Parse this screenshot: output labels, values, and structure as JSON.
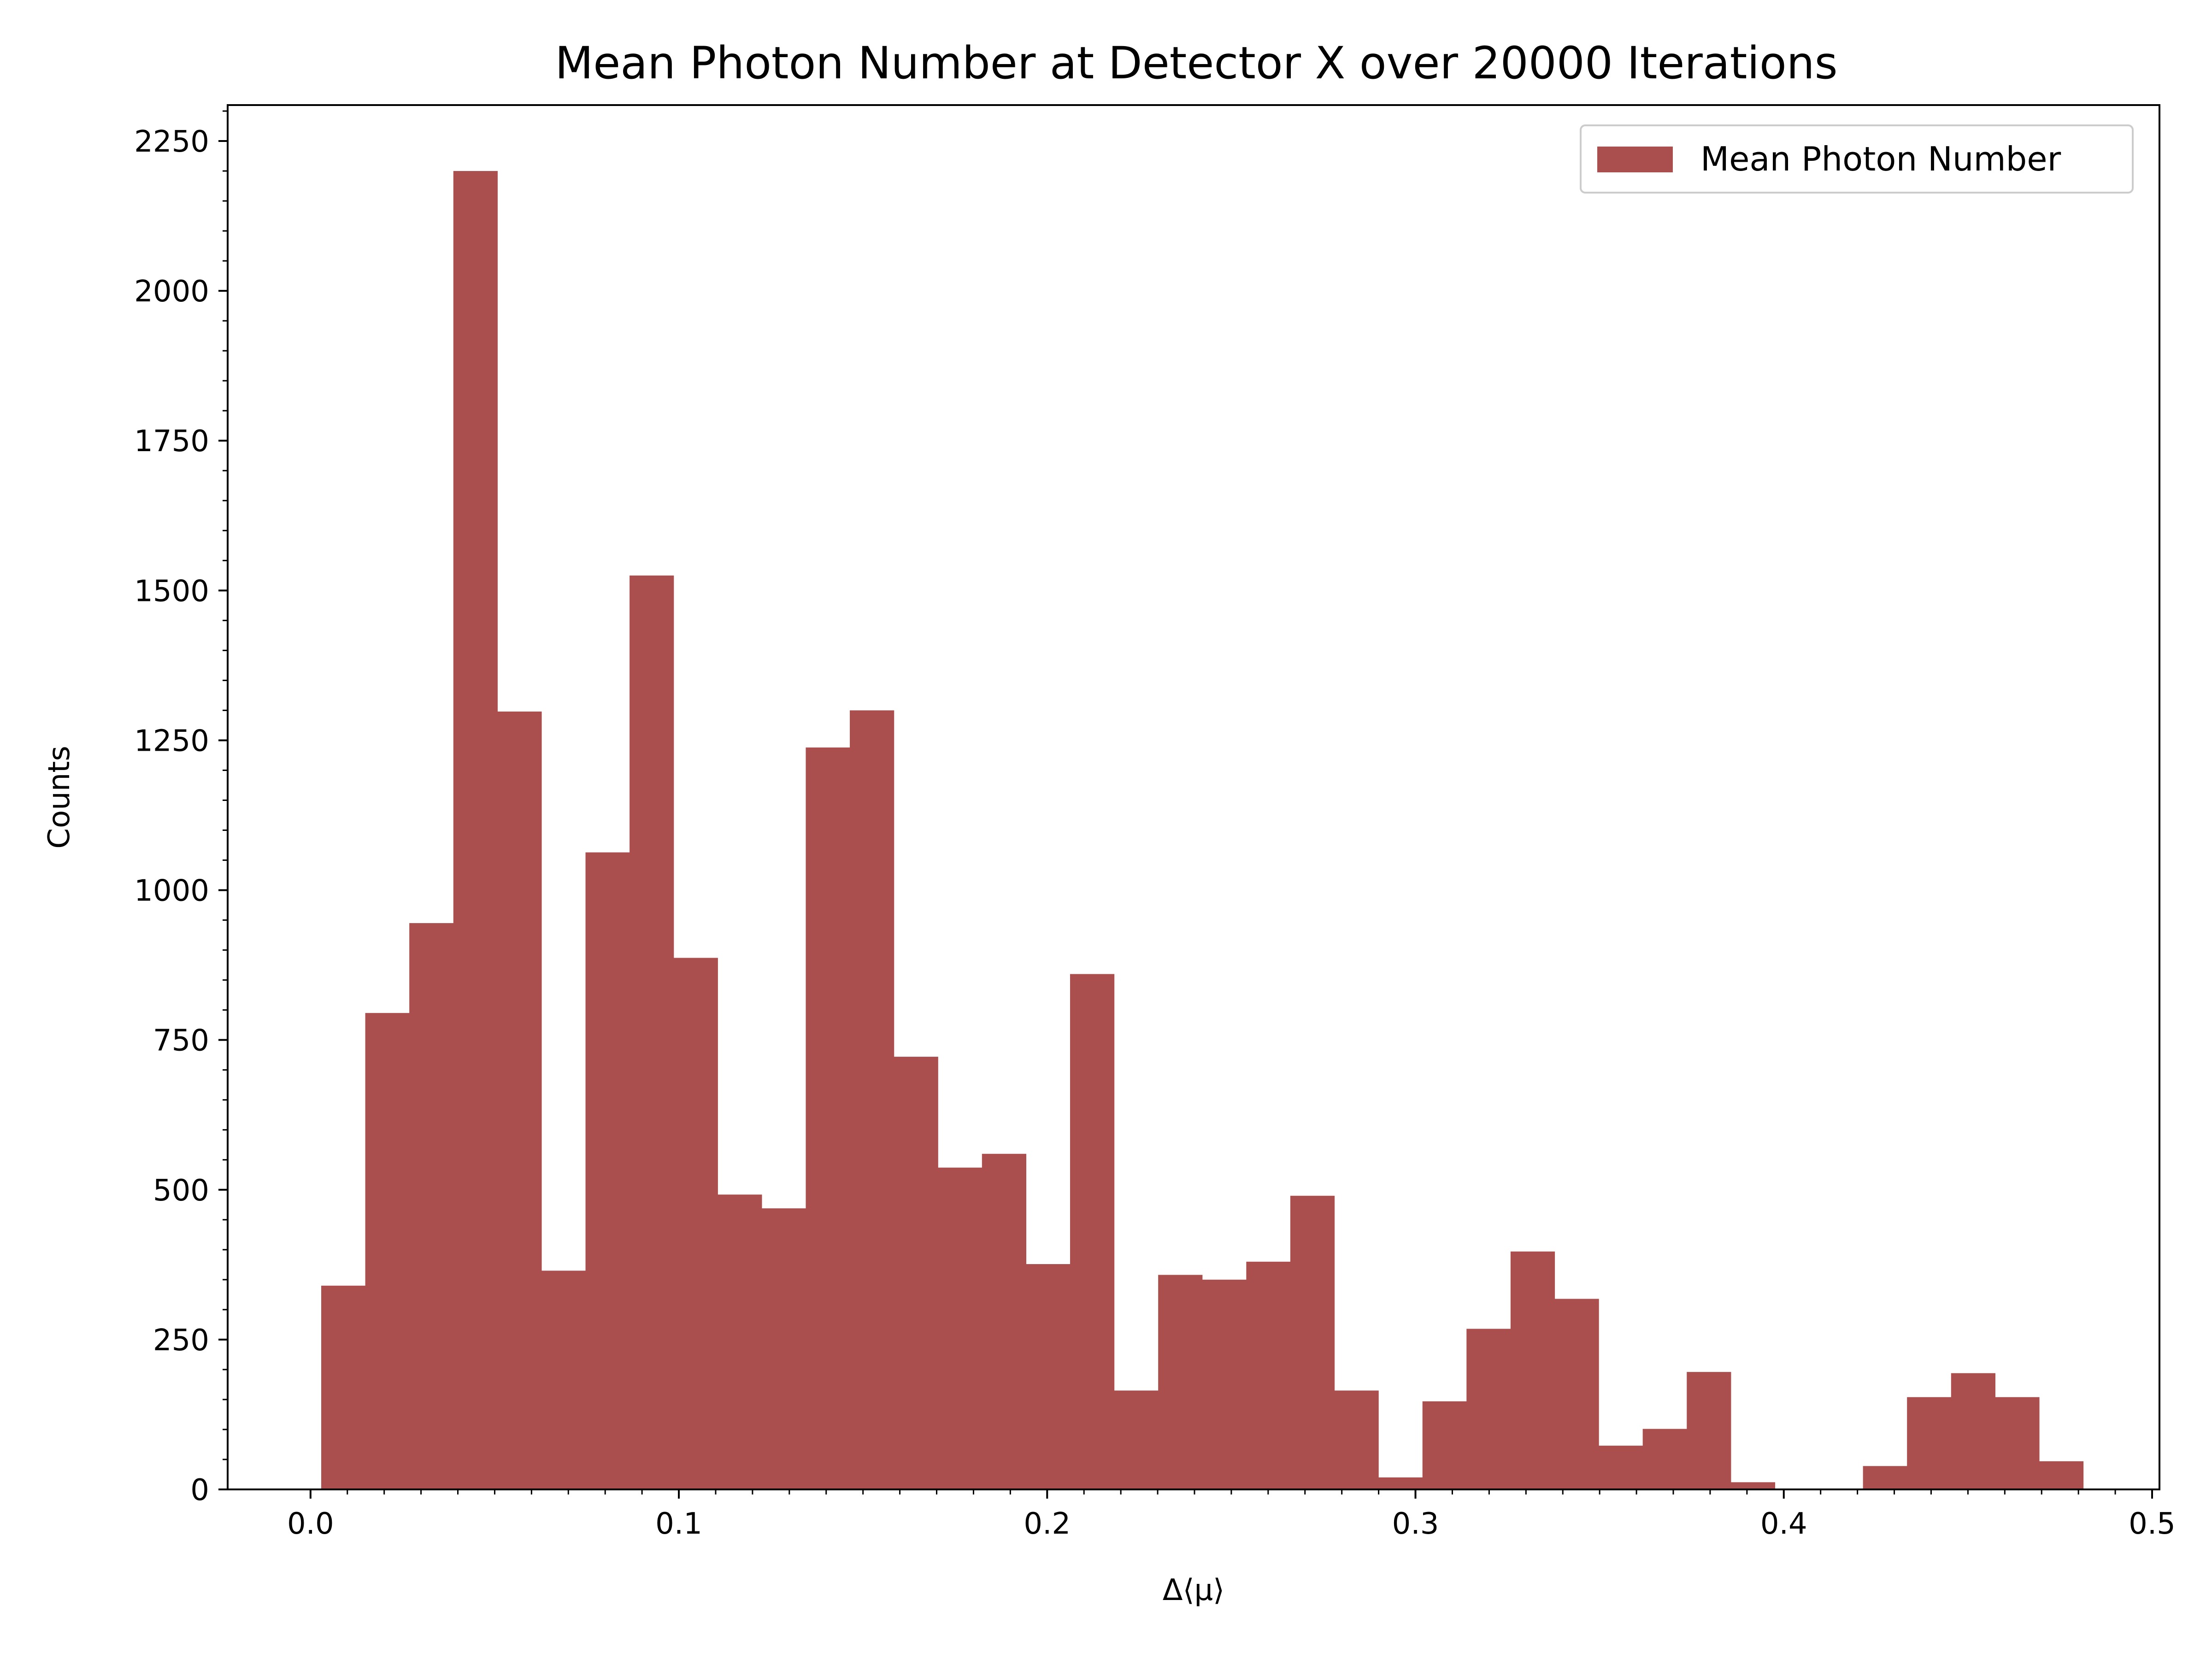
{
  "chart_data": {
    "type": "bar",
    "title": "Mean Photon Number at Detector X over 20000 Iterations",
    "xlabel": "Δ⟨μ⟩",
    "ylabel": "Counts",
    "xlim": [
      -0.0225,
      0.502
    ],
    "ylim": [
      0,
      2310
    ],
    "xticks": [
      0.0,
      0.1,
      0.2,
      0.3,
      0.4,
      0.5
    ],
    "xtick_labels": [
      "0.0",
      "0.1",
      "0.2",
      "0.3",
      "0.4",
      "0.5"
    ],
    "yticks": [
      0,
      250,
      500,
      750,
      1000,
      1250,
      1500,
      1750,
      2000,
      2250
    ],
    "ytick_labels": [
      "0",
      "250",
      "500",
      "750",
      "1000",
      "1250",
      "1500",
      "1750",
      "2000",
      "2250"
    ],
    "bin_start": 0.0029,
    "bin_width": 0.01196,
    "values": [
      340,
      795,
      945,
      2200,
      1298,
      365,
      1063,
      1525,
      887,
      492,
      469,
      1238,
      1300,
      722,
      537,
      560,
      376,
      860,
      165,
      358,
      350,
      380,
      490,
      165,
      20,
      147,
      268,
      397,
      318,
      73,
      101,
      196,
      12,
      0,
      0,
      39,
      154,
      194,
      154,
      47
    ],
    "grid": false,
    "legend_position": "top-right",
    "series": [
      {
        "name": "Mean Photon Number",
        "color": "#ab4e4e"
      }
    ]
  }
}
